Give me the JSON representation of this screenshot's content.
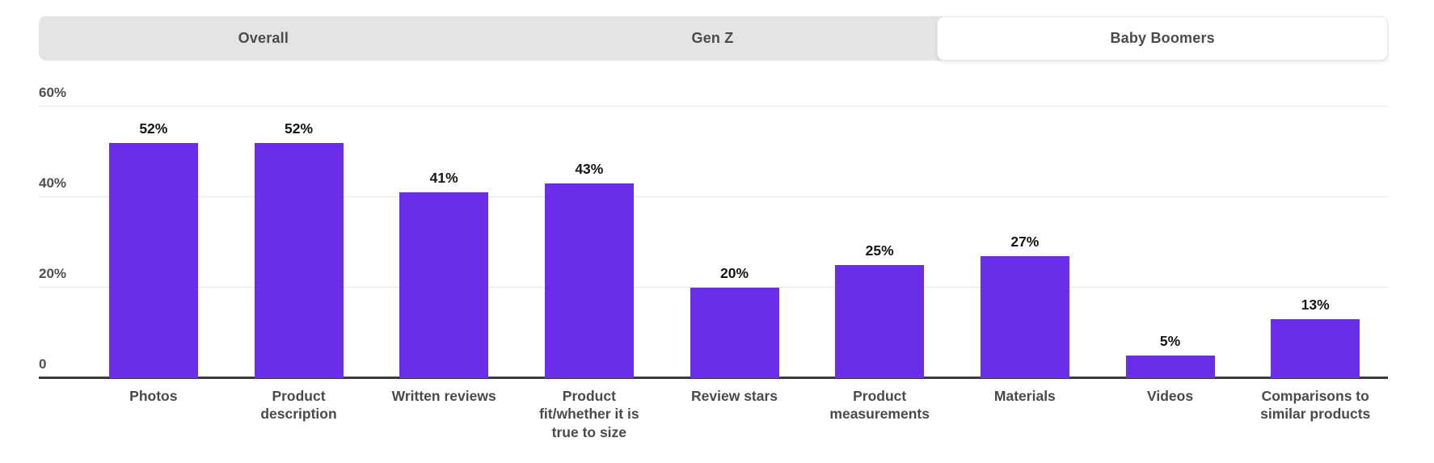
{
  "tabs": [
    {
      "label": "Overall",
      "active": false
    },
    {
      "label": "Gen Z",
      "active": false
    },
    {
      "label": "Baby Boomers",
      "active": true
    }
  ],
  "colors": {
    "bar": "#6a2ee9",
    "tab_bar_bg": "#e5e4e4",
    "active_tab_bg": "#ffffff",
    "baseline": "#3b3b3b",
    "gridline": "#e3e3e3",
    "label_text": "#4a4a4a",
    "value_text": "#151515"
  },
  "y_axis": {
    "tick_labels": {
      "t0": "0",
      "t20": "20%",
      "t40": "40%",
      "t60": "60%"
    }
  },
  "chart_data": {
    "type": "bar",
    "title": "",
    "xlabel": "",
    "ylabel": "",
    "categories": [
      "Photos",
      "Product description",
      "Written reviews",
      "Product fit/whether it is true to size",
      "Review stars",
      "Product measurements",
      "Materials",
      "Videos",
      "Comparisons to similar products"
    ],
    "values": [
      52,
      52,
      41,
      43,
      20,
      25,
      27,
      5,
      13
    ],
    "value_labels": [
      "52%",
      "52%",
      "41%",
      "43%",
      "20%",
      "25%",
      "27%",
      "5%",
      "13%"
    ],
    "ylim": [
      0,
      60
    ],
    "yticks": [
      0,
      20,
      40,
      60
    ],
    "grid": true,
    "legend": false,
    "bar_color": "#6a2ee9",
    "active_series": "Baby Boomers"
  }
}
